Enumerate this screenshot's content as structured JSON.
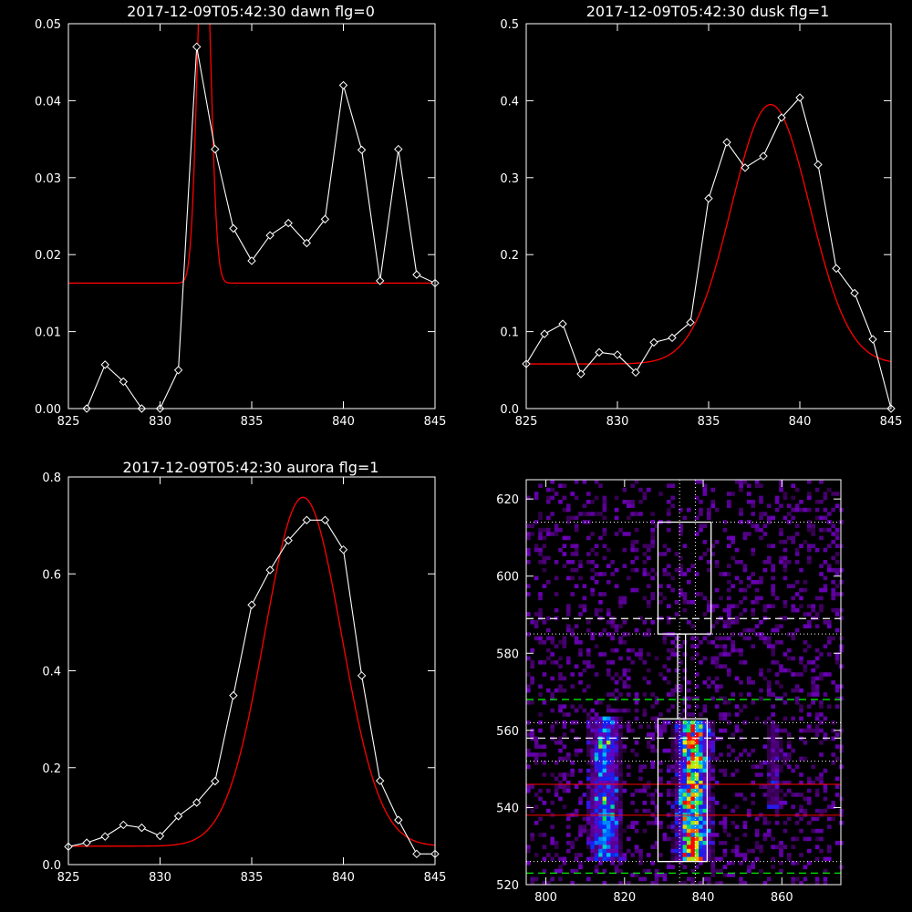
{
  "colors": {
    "background": "#000000",
    "axes": "#ffffff",
    "data": "#ffffff",
    "fit": "#ff0000",
    "guide_green": "#00ff00",
    "guide_red": "#ff0000"
  },
  "chart_data": [
    {
      "type": "line",
      "title": "2017-12-09T05:42:30 dawn flg=0",
      "xlim": [
        825,
        845
      ],
      "ylim": [
        0,
        0.05
      ],
      "xticks": [
        "825",
        "830",
        "835",
        "840",
        "845"
      ],
      "yticks": [
        "0.00",
        "0.01",
        "0.02",
        "0.03",
        "0.04",
        "0.05"
      ],
      "x": [
        826,
        827,
        828,
        829,
        830,
        831,
        832,
        833,
        834,
        835,
        836,
        837,
        838,
        839,
        840,
        841,
        842,
        843,
        844,
        845
      ],
      "y": [
        0.0,
        0.0057,
        0.0035,
        0.0,
        0.0,
        0.005,
        0.047,
        0.0337,
        0.0234,
        0.0192,
        0.0225,
        0.0241,
        0.0215,
        0.0246,
        0.042,
        0.0336,
        0.0166,
        0.0337,
        0.0174,
        0.0163
      ],
      "fit": {
        "baseline": 0.0163,
        "amplitude": 0.05,
        "center": 832.4,
        "sigma": 0.35
      }
    },
    {
      "type": "line",
      "title": "2017-12-09T05:42:30 dusk flg=1",
      "xlim": [
        825,
        845
      ],
      "ylim": [
        0,
        0.5
      ],
      "xticks": [
        "825",
        "830",
        "835",
        "840",
        "845"
      ],
      "yticks": [
        "0.0",
        "0.1",
        "0.2",
        "0.3",
        "0.4",
        "0.5"
      ],
      "x": [
        825,
        826,
        827,
        828,
        829,
        830,
        831,
        832,
        833,
        834,
        835,
        836,
        837,
        838,
        839,
        840,
        841,
        842,
        843,
        844,
        845
      ],
      "y": [
        0.058,
        0.097,
        0.11,
        0.045,
        0.073,
        0.07,
        0.047,
        0.086,
        0.092,
        0.112,
        0.273,
        0.346,
        0.313,
        0.328,
        0.378,
        0.404,
        0.317,
        0.182,
        0.15,
        0.09,
        0.0
      ],
      "fit": {
        "baseline": 0.058,
        "amplitude": 0.337,
        "center": 838.4,
        "sigma": 2.15
      }
    },
    {
      "type": "line",
      "title": "2017-12-09T05:42:30 aurora flg=1",
      "xlim": [
        825,
        845
      ],
      "ylim": [
        0,
        0.8
      ],
      "xticks": [
        "825",
        "830",
        "835",
        "840",
        "845"
      ],
      "yticks": [
        "0.0",
        "0.2",
        "0.4",
        "0.6",
        "0.8"
      ],
      "x": [
        825,
        826,
        827,
        828,
        829,
        830,
        831,
        832,
        833,
        834,
        835,
        836,
        837,
        838,
        839,
        840,
        841,
        842,
        843,
        844,
        845
      ],
      "y": [
        0.037,
        0.045,
        0.058,
        0.082,
        0.076,
        0.059,
        0.1,
        0.128,
        0.172,
        0.349,
        0.536,
        0.608,
        0.669,
        0.711,
        0.711,
        0.65,
        0.39,
        0.173,
        0.092,
        0.022,
        0.022
      ],
      "fit": {
        "baseline": 0.038,
        "amplitude": 0.72,
        "center": 837.8,
        "sigma": 2.1
      }
    },
    {
      "type": "heatmap",
      "title": "",
      "xlim": [
        795,
        875
      ],
      "ylim": [
        520,
        625
      ],
      "xticks": [
        "800",
        "820",
        "840",
        "860"
      ],
      "yticks": [
        "520",
        "540",
        "560",
        "580",
        "600",
        "620"
      ],
      "columns": [
        {
          "center": 815,
          "width": 2.5,
          "ymin": 526,
          "ymax": 564,
          "strength": 0.5
        },
        {
          "center": 837.5,
          "width": 2.5,
          "ymin": 526,
          "ymax": 563,
          "strength": 0.9
        },
        {
          "center": 858,
          "width": 1.5,
          "ymin": 540,
          "ymax": 562,
          "strength": 0.2
        }
      ],
      "boxes": [
        {
          "x0": 828.5,
          "x1": 842,
          "y0": 585,
          "y1": 614
        },
        {
          "x0": 833.5,
          "x1": 835.5,
          "y0": 563,
          "y1": 585
        },
        {
          "x0": 828.5,
          "x1": 841,
          "y0": 526,
          "y1": 563
        }
      ],
      "hlines_dotted_white": [
        614,
        585,
        562,
        552,
        526
      ],
      "hlines_dashed_white": [
        589,
        558
      ],
      "hlines_dashed_green": [
        568,
        523
      ],
      "hlines_red": [
        546,
        538
      ],
      "vlines_dotted_white": [
        834,
        838
      ]
    }
  ]
}
